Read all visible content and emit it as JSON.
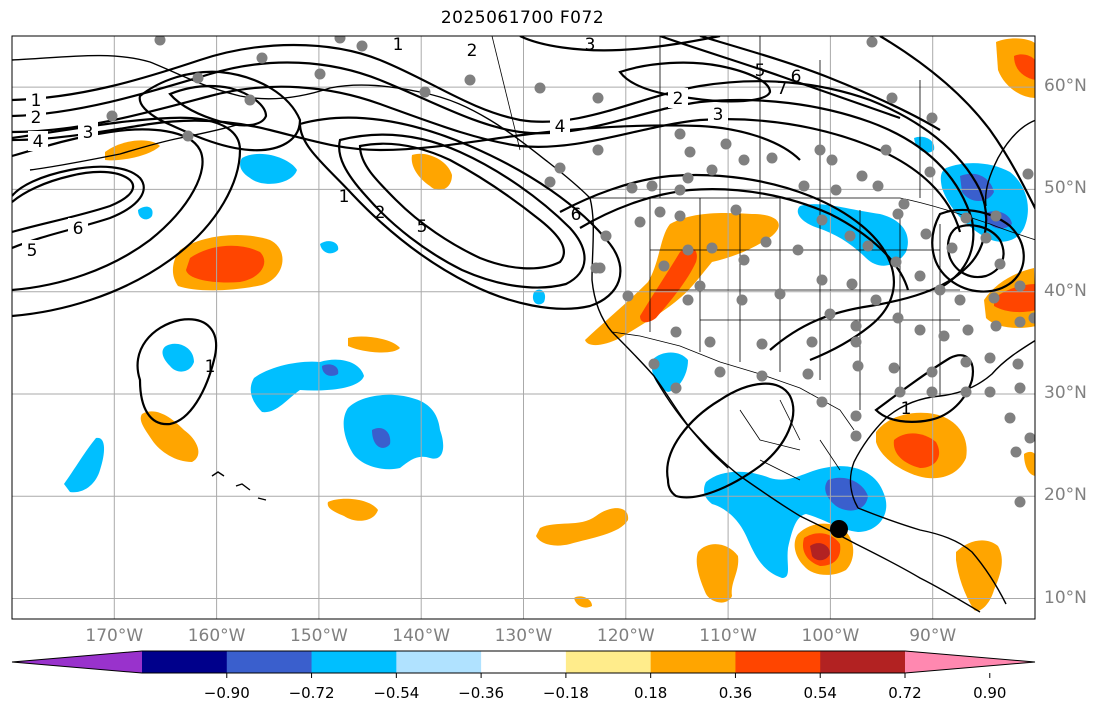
{
  "title": "2025061700 F072",
  "map": {
    "lon_range": [
      -180,
      -80
    ],
    "lat_range": [
      8,
      65
    ],
    "lon_ticks": [
      {
        "lon": -170,
        "label": "170°W"
      },
      {
        "lon": -160,
        "label": "160°W"
      },
      {
        "lon": -150,
        "label": "150°W"
      },
      {
        "lon": -140,
        "label": "140°W"
      },
      {
        "lon": -130,
        "label": "130°W"
      },
      {
        "lon": -120,
        "label": "120°W"
      },
      {
        "lon": -110,
        "label": "110°W"
      },
      {
        "lon": -100,
        "label": "100°W"
      },
      {
        "lon": -90,
        "label": "90°W"
      }
    ],
    "lat_ticks": [
      {
        "lat": 60,
        "label": "60°N"
      },
      {
        "lat": 50,
        "label": "50°N"
      },
      {
        "lat": 40,
        "label": "40°N"
      },
      {
        "lat": 30,
        "label": "30°N"
      },
      {
        "lat": 20,
        "label": "20°N"
      },
      {
        "lat": 10,
        "label": "10°N"
      }
    ],
    "contour_labels": [
      "1",
      "2",
      "3",
      "4",
      "5",
      "6",
      "7"
    ],
    "marker": {
      "lon": -100,
      "lat": 16.8
    }
  },
  "colorbar": {
    "colors": [
      "#9932cc",
      "#00008b",
      "#3a5fcd",
      "#00bfff",
      "#b0e2ff",
      "#ffffff",
      "#ffec8b",
      "#ffa500",
      "#ff4500",
      "#b22222",
      "#ff88b0"
    ],
    "ticks": [
      "−0.90",
      "−0.72",
      "−0.54",
      "−0.36",
      "−0.18",
      "0.18",
      "0.36",
      "0.54",
      "0.72",
      "0.90"
    ]
  }
}
